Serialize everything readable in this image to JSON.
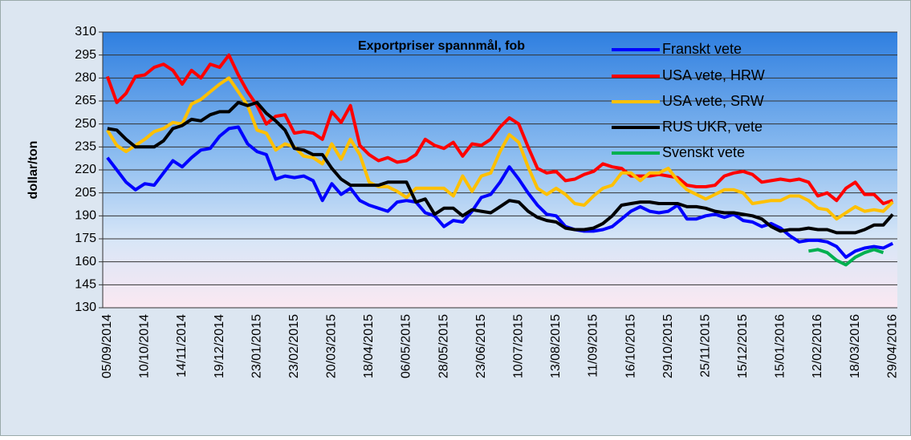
{
  "chart_data": {
    "type": "line",
    "title": "Exportpriser spannmål, fob",
    "y_label": "dollar/ton",
    "categories": [
      "05/09/2014",
      null,
      null,
      null,
      "10/10/2014",
      null,
      null,
      null,
      "14/11/2014",
      null,
      null,
      null,
      "19/12/2014",
      null,
      null,
      null,
      "23/01/2015",
      null,
      null,
      null,
      "23/02/2015",
      null,
      null,
      null,
      "20/03/2015",
      null,
      null,
      null,
      "18/04/2015",
      null,
      null,
      null,
      "06/05/2015",
      null,
      null,
      null,
      "28/05/2015",
      null,
      null,
      null,
      "23/06/2015",
      null,
      null,
      null,
      "10/07/2015",
      null,
      null,
      null,
      "13/08/2015",
      null,
      null,
      null,
      "11/09/2015",
      null,
      null,
      null,
      "16/10/2015",
      null,
      null,
      null,
      "29/10/2015",
      null,
      null,
      null,
      "25/11/2015",
      null,
      null,
      null,
      "15/12/2015",
      null,
      null,
      null,
      "15/01/2016",
      null,
      null,
      null,
      "12/02/2016",
      null,
      null,
      null,
      "18/03/2016",
      null,
      null,
      null,
      "29/04/2016"
    ],
    "series": [
      {
        "name": "Franskt vete",
        "color": "#0000ff",
        "values": [
          228,
          220,
          212,
          207,
          211,
          210,
          218,
          226,
          222,
          228,
          233,
          234,
          242,
          247,
          248,
          237,
          232,
          230,
          214,
          216,
          215,
          216,
          213,
          200,
          211,
          204,
          208,
          200,
          197,
          195,
          193,
          199,
          200,
          199,
          192,
          190,
          183,
          187,
          186,
          193,
          202,
          204,
          212,
          222,
          214,
          205,
          197,
          191,
          190,
          183,
          181,
          180,
          180,
          181,
          183,
          188,
          193,
          196,
          193,
          192,
          193,
          197,
          188,
          188,
          190,
          191,
          189,
          191,
          187,
          186,
          183,
          185,
          182,
          177,
          173,
          174,
          174,
          173,
          170,
          163,
          167,
          169,
          170,
          169,
          172
        ]
      },
      {
        "name": "USA vete, HRW",
        "color": "#ff0000",
        "values": [
          281,
          264,
          270,
          281,
          282,
          287,
          289,
          285,
          276,
          285,
          280,
          289,
          287,
          295,
          282,
          271,
          262,
          250,
          255,
          256,
          244,
          245,
          244,
          240,
          258,
          251,
          262,
          236,
          230,
          226,
          228,
          225,
          226,
          230,
          240,
          236,
          234,
          238,
          229,
          237,
          236,
          240,
          248,
          254,
          250,
          235,
          221,
          218,
          219,
          213,
          214,
          217,
          219,
          224,
          222,
          221,
          216,
          216,
          216,
          217,
          216,
          215,
          210,
          209,
          209,
          210,
          216,
          218,
          219,
          217,
          212,
          213,
          214,
          213,
          214,
          212,
          203,
          205,
          200,
          208,
          212,
          204,
          204,
          198,
          200
        ]
      },
      {
        "name": "USA vete, SRW",
        "color": "#ffc000",
        "values": [
          246,
          236,
          232,
          236,
          240,
          245,
          247,
          251,
          250,
          263,
          266,
          271,
          276,
          280,
          271,
          262,
          246,
          244,
          233,
          237,
          235,
          229,
          228,
          224,
          237,
          227,
          240,
          230,
          212,
          209,
          209,
          206,
          202,
          208,
          208,
          208,
          208,
          203,
          216,
          206,
          216,
          218,
          232,
          243,
          238,
          222,
          208,
          204,
          208,
          204,
          198,
          197,
          203,
          208,
          210,
          218,
          218,
          213,
          218,
          218,
          221,
          213,
          207,
          204,
          201,
          204,
          207,
          207,
          205,
          198,
          199,
          200,
          200,
          203,
          203,
          200,
          195,
          194,
          188,
          192,
          196,
          193,
          194,
          193,
          199
        ]
      },
      {
        "name": "RUS UKR, vete",
        "color": "#000000",
        "values": [
          247,
          246,
          240,
          235,
          235,
          235,
          239,
          247,
          249,
          253,
          252,
          256,
          258,
          258,
          264,
          262,
          264,
          257,
          252,
          246,
          234,
          233,
          230,
          230,
          221,
          214,
          210,
          210,
          210,
          210,
          212,
          212,
          212,
          199,
          201,
          191,
          195,
          195,
          190,
          194,
          193,
          192,
          196,
          200,
          199,
          193,
          189,
          187,
          186,
          182,
          181,
          181,
          182,
          185,
          190,
          197,
          198,
          199,
          199,
          198,
          198,
          198,
          196,
          196,
          195,
          193,
          192,
          192,
          191,
          190,
          188,
          183,
          180,
          181,
          181,
          182,
          181,
          181,
          179,
          179,
          179,
          181,
          184,
          184,
          191
        ]
      },
      {
        "name": "Svenskt vete",
        "color": "#00b050",
        "values": [
          null,
          null,
          null,
          null,
          null,
          null,
          null,
          null,
          null,
          null,
          null,
          null,
          null,
          null,
          null,
          null,
          null,
          null,
          null,
          null,
          null,
          null,
          null,
          null,
          null,
          null,
          null,
          null,
          null,
          null,
          null,
          null,
          null,
          null,
          null,
          null,
          null,
          null,
          null,
          null,
          null,
          null,
          null,
          null,
          null,
          null,
          null,
          null,
          null,
          null,
          null,
          null,
          null,
          null,
          null,
          null,
          null,
          null,
          null,
          null,
          null,
          null,
          null,
          null,
          null,
          null,
          null,
          null,
          null,
          null,
          null,
          null,
          null,
          null,
          null,
          167,
          168,
          166,
          161,
          158,
          163,
          166,
          168,
          166,
          null
        ]
      }
    ],
    "ylim": [
      130,
      310
    ],
    "yticks": [
      130,
      145,
      160,
      175,
      190,
      205,
      220,
      235,
      250,
      265,
      280,
      295,
      310
    ],
    "grid": true
  }
}
